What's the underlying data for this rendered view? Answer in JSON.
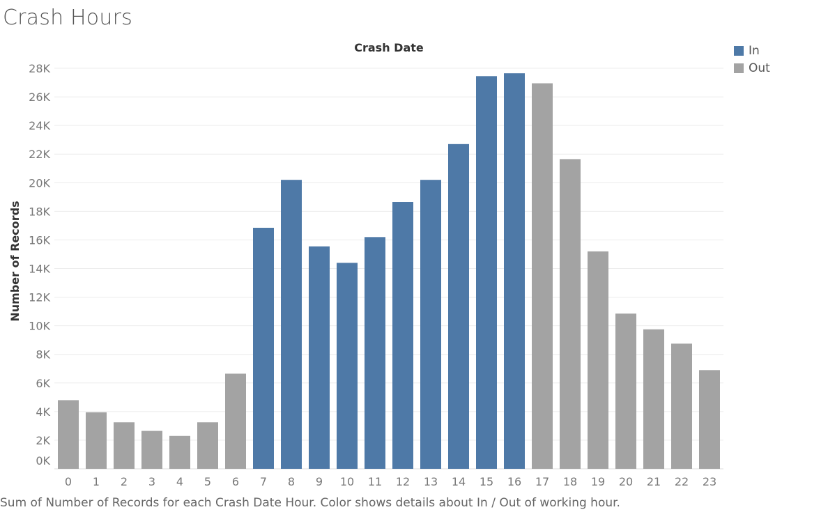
{
  "title": "Crash Hours",
  "subtitle": "Sum of Number of Records for each Crash Date Hour.  Color shows details about In / Out of working hour.",
  "colors": {
    "In": "#4e79a7",
    "Out": "#a3a3a3",
    "grid": "#ececec",
    "baseline": "#dddddd"
  },
  "legend": [
    {
      "label": "In",
      "color": "#4e79a7"
    },
    {
      "label": "Out",
      "color": "#a3a3a3"
    }
  ],
  "chart_data": {
    "type": "bar",
    "title": "Crash Date",
    "xlabel": "",
    "ylabel": "Number of Records",
    "categories": [
      "0",
      "1",
      "2",
      "3",
      "4",
      "5",
      "6",
      "7",
      "8",
      "9",
      "10",
      "11",
      "12",
      "13",
      "14",
      "15",
      "16",
      "17",
      "18",
      "19",
      "20",
      "21",
      "22",
      "23"
    ],
    "values": [
      4800,
      3950,
      3250,
      2650,
      2300,
      3250,
      6650,
      16850,
      20200,
      15550,
      14400,
      16200,
      18650,
      20200,
      22700,
      27450,
      27650,
      26950,
      21650,
      15200,
      10850,
      9750,
      8750,
      6900
    ],
    "groups": [
      "Out",
      "Out",
      "Out",
      "Out",
      "Out",
      "Out",
      "Out",
      "In",
      "In",
      "In",
      "In",
      "In",
      "In",
      "In",
      "In",
      "In",
      "In",
      "Out",
      "Out",
      "Out",
      "Out",
      "Out",
      "Out",
      "Out"
    ],
    "legend_position": "top-right",
    "grid": true,
    "ylim": [
      0,
      28000
    ],
    "yticks": [
      0,
      2000,
      4000,
      6000,
      8000,
      10000,
      12000,
      14000,
      16000,
      18000,
      20000,
      22000,
      24000,
      26000,
      28000
    ],
    "ytick_labels": [
      "0K",
      "2K",
      "4K",
      "6K",
      "8K",
      "10K",
      "12K",
      "14K",
      "16K",
      "18K",
      "20K",
      "22K",
      "24K",
      "26K",
      "28K"
    ]
  }
}
